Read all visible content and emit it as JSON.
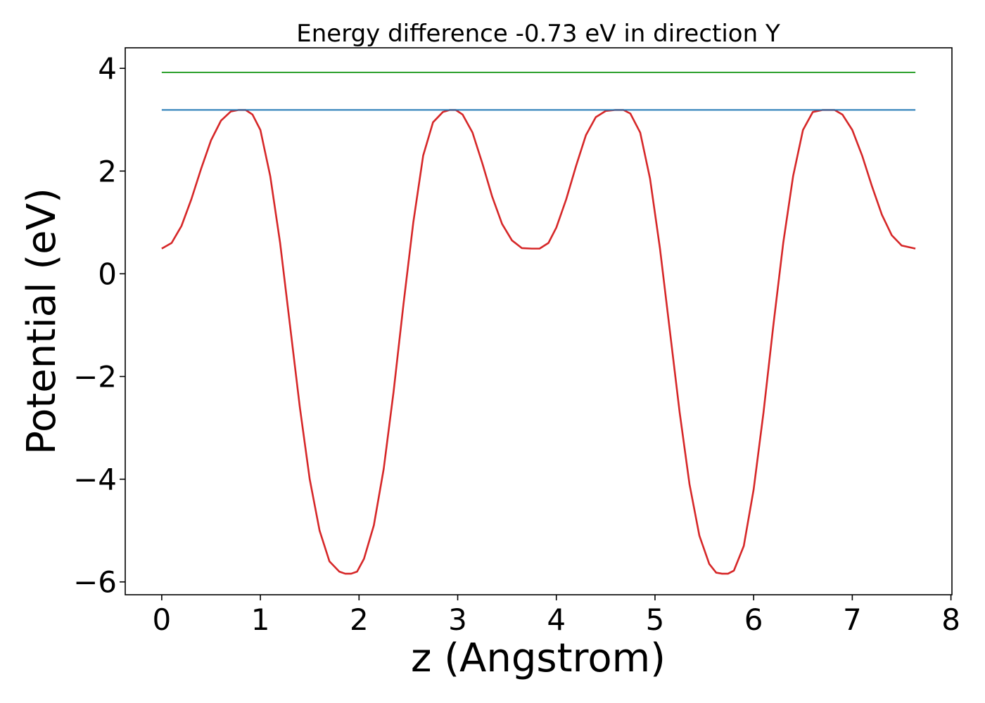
{
  "chart_data": {
    "type": "line",
    "title": "Energy difference -0.73 eV in direction Y",
    "xlabel": "z (Angstrom)",
    "ylabel": "Potential (eV)",
    "xlim": [
      -0.37,
      8.01
    ],
    "ylim": [
      -6.25,
      4.4
    ],
    "xticks": [
      0,
      1,
      2,
      3,
      4,
      5,
      6,
      7,
      8
    ],
    "xtick_labels": [
      "0",
      "1",
      "2",
      "3",
      "4",
      "5",
      "6",
      "7",
      "8"
    ],
    "yticks": [
      4,
      2,
      0,
      -2,
      -4,
      -6
    ],
    "ytick_labels": [
      "4",
      "2",
      "0",
      "−2",
      "−4",
      "−6"
    ],
    "grid": false,
    "legend": "none",
    "series": [
      {
        "color": "#d62728",
        "x": [
          0,
          0.1,
          0.2,
          0.3,
          0.4,
          0.5,
          0.6,
          0.7,
          0.78,
          0.85,
          0.92,
          1.0,
          1.1,
          1.2,
          1.3,
          1.4,
          1.5,
          1.6,
          1.7,
          1.8,
          1.86,
          1.92,
          1.98,
          2.05,
          2.15,
          2.25,
          2.35,
          2.45,
          2.55,
          2.65,
          2.75,
          2.85,
          2.92,
          2.98,
          3.05,
          3.15,
          3.25,
          3.35,
          3.45,
          3.55,
          3.65,
          3.75,
          3.83,
          3.92,
          4.0,
          4.1,
          4.2,
          4.3,
          4.4,
          4.5,
          4.6,
          4.68,
          4.75,
          4.85,
          4.95,
          5.05,
          5.15,
          5.25,
          5.35,
          5.45,
          5.55,
          5.62,
          5.68,
          5.74,
          5.8,
          5.9,
          6.0,
          6.1,
          6.2,
          6.3,
          6.4,
          6.5,
          6.6,
          6.7,
          6.76,
          6.82,
          6.9,
          7.0,
          7.1,
          7.2,
          7.3,
          7.4,
          7.5,
          7.64
        ],
        "y": [
          0.49,
          0.6,
          0.93,
          1.45,
          2.05,
          2.6,
          2.98,
          3.16,
          3.19,
          3.19,
          3.1,
          2.8,
          1.9,
          0.6,
          -1.0,
          -2.6,
          -4.0,
          -5.0,
          -5.6,
          -5.8,
          -5.84,
          -5.84,
          -5.8,
          -5.55,
          -4.9,
          -3.8,
          -2.3,
          -0.6,
          1.0,
          2.3,
          2.95,
          3.15,
          3.19,
          3.19,
          3.1,
          2.75,
          2.15,
          1.5,
          0.97,
          0.65,
          0.5,
          0.49,
          0.49,
          0.6,
          0.9,
          1.45,
          2.1,
          2.7,
          3.05,
          3.17,
          3.19,
          3.19,
          3.12,
          2.75,
          1.85,
          0.5,
          -1.1,
          -2.7,
          -4.1,
          -5.1,
          -5.65,
          -5.82,
          -5.84,
          -5.84,
          -5.78,
          -5.3,
          -4.2,
          -2.7,
          -1.0,
          0.6,
          1.9,
          2.8,
          3.15,
          3.19,
          3.19,
          3.19,
          3.1,
          2.8,
          2.3,
          1.7,
          1.15,
          0.75,
          0.55,
          0.49
        ]
      },
      {
        "color": "#1f77b4",
        "x": [
          0,
          7.64
        ],
        "y": [
          3.19,
          3.19
        ]
      },
      {
        "color": "#2ca02c",
        "x": [
          0,
          7.64
        ],
        "y": [
          3.92,
          3.92
        ]
      }
    ]
  }
}
